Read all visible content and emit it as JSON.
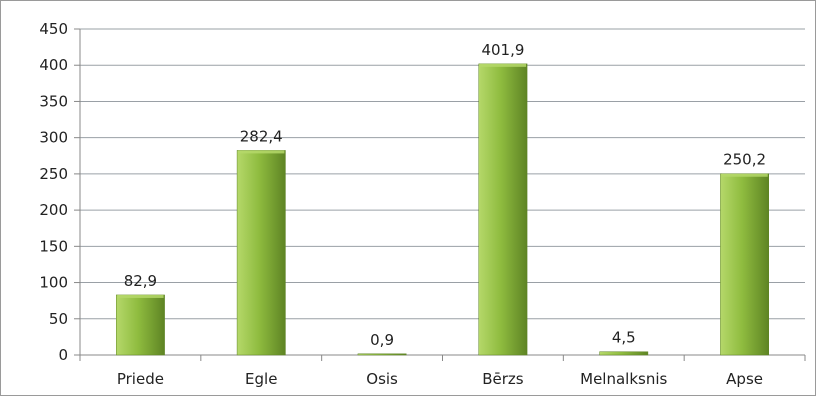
{
  "chart_data": {
    "type": "bar",
    "title": "",
    "xlabel": "",
    "ylabel": "",
    "categories": [
      "Priede",
      "Egle",
      "Osis",
      "Bērzs",
      "Melnalksnis",
      "Apse"
    ],
    "values": [
      82.9,
      282.4,
      0.9,
      401.9,
      4.5,
      250.2
    ],
    "data_labels": [
      "82,9",
      "282,4",
      "0,9",
      "401,9",
      "4,5",
      "250,2"
    ],
    "ylim": [
      0,
      450
    ],
    "yticks": [
      0,
      50,
      100,
      150,
      200,
      250,
      300,
      350,
      400,
      450
    ],
    "ytick_labels": [
      "0",
      "50",
      "100",
      "150",
      "200",
      "250",
      "300",
      "350",
      "400",
      "450"
    ],
    "grid": true,
    "legend": "none",
    "colors": {
      "bar_light": "#b5d86a",
      "bar_mid": "#8fbc3f",
      "bar_dark": "#5e8424",
      "gridline": "#9aa0a6",
      "axis": "#888888"
    }
  }
}
